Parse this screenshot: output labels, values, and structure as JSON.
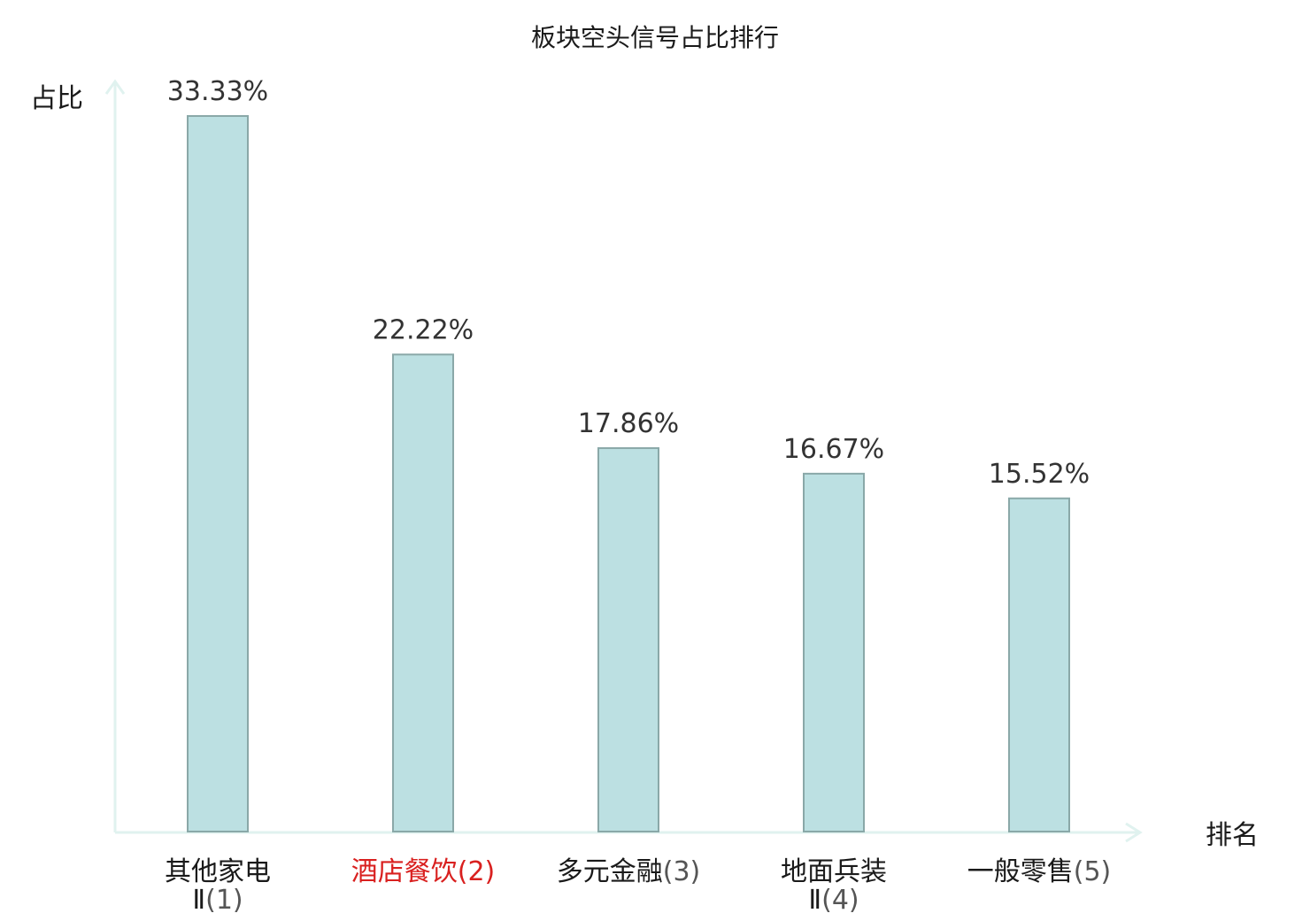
{
  "chart_data": {
    "type": "bar",
    "title": "板块空头信号占比排行",
    "ylabel": "占比",
    "xlabel": "排名",
    "ylim": [
      0,
      35
    ],
    "grid": false,
    "legend": "none",
    "categories": [
      {
        "lines": [
          "其他家电",
          "Ⅱ"
        ],
        "rank": "(1)",
        "highlight": false
      },
      {
        "lines": [
          "酒店餐饮"
        ],
        "rank": "(2)",
        "highlight": true
      },
      {
        "lines": [
          "多元金融"
        ],
        "rank": "(3)",
        "highlight": false
      },
      {
        "lines": [
          "地面兵装",
          "Ⅱ"
        ],
        "rank": "(4)",
        "highlight": false
      },
      {
        "lines": [
          "一般零售"
        ],
        "rank": "(5)",
        "highlight": false
      }
    ],
    "values": [
      33.33,
      22.22,
      17.86,
      16.67,
      15.52
    ],
    "value_labels": [
      "33.33%",
      "22.22%",
      "17.86%",
      "16.67%",
      "15.52%"
    ]
  },
  "colors": {
    "bar_fill": "#bce0e2",
    "bar_stroke": "#8aa8a8",
    "axis": "#e0f2ef",
    "highlight_text": "#d9201f"
  }
}
